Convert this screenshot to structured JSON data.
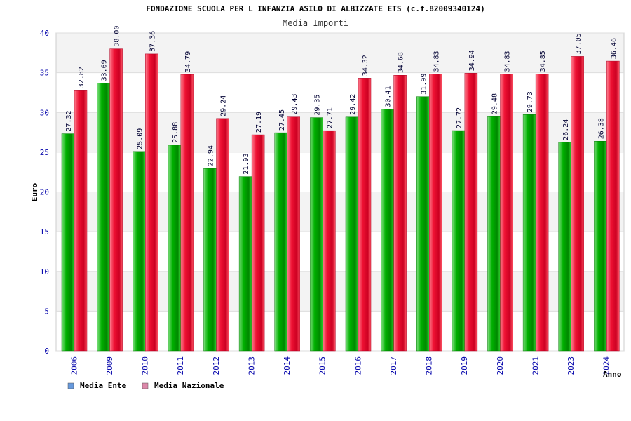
{
  "chart_data": {
    "type": "bar",
    "title": "FONDAZIONE SCUOLA PER L INFANZIA ASILO DI ALBIZZATE ETS (c.f.82009340124)",
    "subtitle": "Media Importi",
    "xlabel": "Anno",
    "ylabel": "Euro",
    "ylim": [
      0,
      40
    ],
    "yticks": [
      0,
      5,
      10,
      15,
      20,
      25,
      30,
      35,
      40
    ],
    "grid": true,
    "legend_position": "bottom-left",
    "categories": [
      "2006",
      "2009",
      "2010",
      "2011",
      "2012",
      "2013",
      "2014",
      "2015",
      "2016",
      "2017",
      "2018",
      "2019",
      "2020",
      "2021",
      "2023",
      "2024"
    ],
    "series": [
      {
        "name": "Media Ente",
        "color": "#00aa00",
        "legend_swatch": "#6699dd",
        "values": [
          27.32,
          33.69,
          25.09,
          25.88,
          22.94,
          21.93,
          27.45,
          29.35,
          29.42,
          30.41,
          31.99,
          27.72,
          29.48,
          29.73,
          26.24,
          26.38
        ]
      },
      {
        "name": "Media Nazionale",
        "color": "#ee1133",
        "legend_swatch": "#dd88aa",
        "values": [
          32.82,
          38.0,
          37.36,
          34.79,
          29.24,
          27.19,
          29.43,
          27.71,
          34.32,
          34.68,
          34.83,
          34.94,
          34.83,
          34.85,
          37.05,
          36.46
        ]
      }
    ],
    "data_labels": [
      [
        "27.32",
        "33.69",
        "25.09",
        "25.88",
        "22.94",
        "21.93",
        "27.45",
        "29.35",
        "29.42",
        "30.41",
        "31.99",
        "27.72",
        "29.48",
        "29.73",
        "26.24",
        "26.38"
      ],
      [
        "32.82",
        "38.00",
        "37.36",
        "34.79",
        "29.24",
        "27.19",
        "29.43",
        "27.71",
        "34.32",
        "34.68",
        "34.83",
        "34.94",
        "34.83",
        "34.85",
        "37.05",
        "36.46"
      ]
    ]
  }
}
